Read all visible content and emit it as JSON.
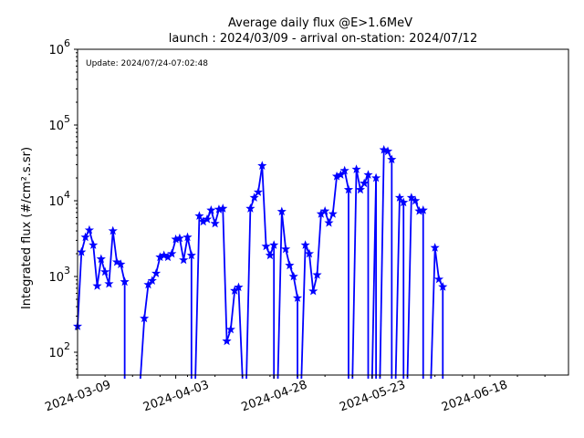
{
  "chart_data": {
    "type": "line",
    "title": "Average daily flux @E>1.6MeV",
    "subtitle": "launch : 2024/03/09 - arrival on-station: 2024/07/12",
    "ylabel": "Integrated flux (#/cm².s.sr)",
    "annotation": "Update: 2024/07/24-07:02:48",
    "y_scale": "log",
    "ylim": [
      50,
      1000000
    ],
    "y_ticks": [
      {
        "value": 100,
        "base": "10",
        "exp": "2"
      },
      {
        "value": 1000,
        "base": "10",
        "exp": "3"
      },
      {
        "value": 10000,
        "base": "10",
        "exp": "4"
      },
      {
        "value": 100000,
        "base": "10",
        "exp": "5"
      },
      {
        "value": 1000000,
        "base": "10",
        "exp": "6"
      }
    ],
    "xlim": [
      "2024-03-09",
      "2024-07-12"
    ],
    "x_ticks": [
      "2024-03-09",
      "2024-04-03",
      "2024-04-28",
      "2024-05-23",
      "2024-06-18"
    ],
    "grid": false,
    "colors": {
      "line": "#0000ff",
      "axis": "#000000"
    },
    "series": [
      {
        "marker": "star",
        "x": [
          "2024-03-09",
          "2024-03-10",
          "2024-03-11",
          "2024-03-12",
          "2024-03-13",
          "2024-03-14",
          "2024-03-15",
          "2024-03-16",
          "2024-03-17",
          "2024-03-18",
          "2024-03-19",
          "2024-03-20",
          "2024-03-21",
          "2024-03-22",
          "2024-03-23",
          "2024-03-24",
          "2024-03-25",
          "2024-03-26",
          "2024-03-27",
          "2024-03-28",
          "2024-03-29",
          "2024-03-30",
          "2024-03-31",
          "2024-04-01",
          "2024-04-02",
          "2024-04-03",
          "2024-04-04",
          "2024-04-05",
          "2024-04-06",
          "2024-04-07",
          "2024-04-08",
          "2024-04-09",
          "2024-04-10",
          "2024-04-11",
          "2024-04-12",
          "2024-04-13",
          "2024-04-14",
          "2024-04-15",
          "2024-04-16",
          "2024-04-17",
          "2024-04-18",
          "2024-04-19",
          "2024-04-20",
          "2024-04-21",
          "2024-04-22",
          "2024-04-23",
          "2024-04-24",
          "2024-04-25",
          "2024-04-26",
          "2024-04-27",
          "2024-04-28",
          "2024-04-29",
          "2024-04-30",
          "2024-05-01",
          "2024-05-02",
          "2024-05-03",
          "2024-05-04",
          "2024-05-05",
          "2024-05-06",
          "2024-05-07",
          "2024-05-08",
          "2024-05-09",
          "2024-05-10",
          "2024-05-11",
          "2024-05-12",
          "2024-05-13",
          "2024-05-14",
          "2024-05-15",
          "2024-05-16",
          "2024-05-17",
          "2024-05-18",
          "2024-05-19",
          "2024-05-20",
          "2024-05-21",
          "2024-05-22",
          "2024-05-23",
          "2024-05-24",
          "2024-05-25",
          "2024-05-26",
          "2024-05-27",
          "2024-05-28",
          "2024-05-29",
          "2024-05-30",
          "2024-05-31",
          "2024-06-01",
          "2024-06-02",
          "2024-06-03",
          "2024-06-04",
          "2024-06-05",
          "2024-06-06",
          "2024-06-07",
          "2024-06-08",
          "2024-06-09",
          "2024-06-10",
          "2024-06-11",
          "2024-06-12"
        ],
        "values": [
          220,
          2100,
          3300,
          4100,
          2600,
          750,
          1700,
          1150,
          800,
          4000,
          1550,
          1450,
          850,
          null,
          null,
          null,
          null,
          280,
          780,
          880,
          1100,
          1800,
          1900,
          1800,
          2000,
          3100,
          3200,
          1650,
          3300,
          1900,
          null,
          6300,
          5300,
          5700,
          7500,
          5000,
          7700,
          7900,
          140,
          200,
          650,
          720,
          45,
          null,
          7900,
          11000,
          13000,
          29000,
          2500,
          1900,
          2600,
          null,
          7200,
          2300,
          1400,
          1000,
          520,
          null,
          2600,
          2000,
          640,
          1050,
          6700,
          7300,
          5100,
          6700,
          21000,
          22000,
          25000,
          14000,
          null,
          26000,
          14000,
          17000,
          22000,
          null,
          20000,
          null,
          47000,
          45000,
          35000,
          null,
          11000,
          9500,
          null,
          11000,
          10000,
          7300,
          7500,
          null,
          null,
          2400,
          920,
          730,
          null,
          null
        ]
      }
    ]
  }
}
